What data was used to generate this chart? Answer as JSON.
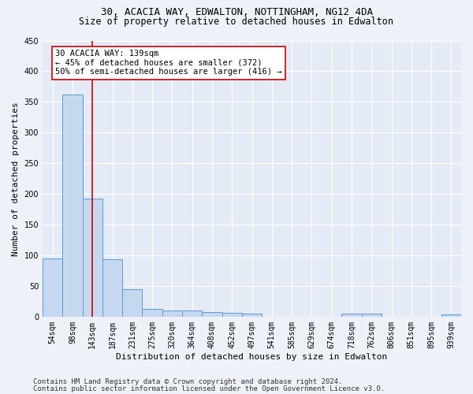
{
  "title1": "30, ACACIA WAY, EDWALTON, NOTTINGHAM, NG12 4DA",
  "title2": "Size of property relative to detached houses in Edwalton",
  "xlabel": "Distribution of detached houses by size in Edwalton",
  "ylabel": "Number of detached properties",
  "footnote1": "Contains HM Land Registry data © Crown copyright and database right 2024.",
  "footnote2": "Contains public sector information licensed under the Open Government Licence v3.0.",
  "bar_values": [
    95,
    362,
    192,
    93,
    45,
    13,
    10,
    10,
    8,
    6,
    5,
    0,
    0,
    0,
    0,
    5,
    5,
    0,
    0,
    0,
    3
  ],
  "x_labels": [
    "54sqm",
    "98sqm",
    "143sqm",
    "187sqm",
    "231sqm",
    "275sqm",
    "320sqm",
    "364sqm",
    "408sqm",
    "452sqm",
    "497sqm",
    "541sqm",
    "585sqm",
    "629sqm",
    "674sqm",
    "718sqm",
    "762sqm",
    "806sqm",
    "851sqm",
    "895sqm",
    "939sqm"
  ],
  "bar_color": "#c5d8f0",
  "bar_edge_color": "#5b9bd5",
  "red_line_x": 2,
  "red_line_color": "#cc0000",
  "annotation_line1": "30 ACACIA WAY: 139sqm",
  "annotation_line2": "← 45% of detached houses are smaller (372)",
  "annotation_line3": "50% of semi-detached houses are larger (416) →",
  "annotation_box_color": "#cc0000",
  "annotation_box_bg": "#ffffff",
  "ylim": [
    0,
    450
  ],
  "yticks": [
    0,
    50,
    100,
    150,
    200,
    250,
    300,
    350,
    400,
    450
  ],
  "bg_color": "#eef2f8",
  "plot_bg_color": "#e4eaf6",
  "grid_color": "#ffffff",
  "title1_fontsize": 9,
  "title2_fontsize": 8.5,
  "xlabel_fontsize": 8,
  "ylabel_fontsize": 8,
  "tick_fontsize": 7,
  "annotation_fontsize": 7.5,
  "footnote_fontsize": 6.5
}
